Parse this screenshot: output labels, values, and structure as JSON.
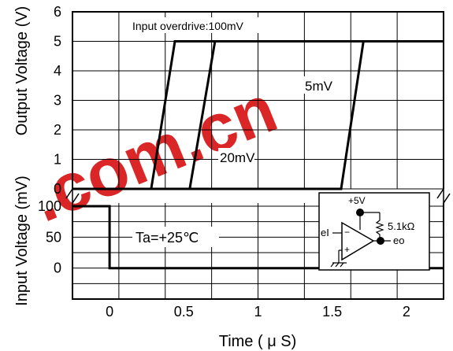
{
  "chart_data": {
    "type": "line",
    "x_unit_label": "Time ( μ S)",
    "x_ticks": [
      0,
      0.5,
      1,
      1.5,
      2
    ],
    "x_tick_labels": [
      "0",
      "0.5",
      "1",
      "1.5",
      "2"
    ],
    "x_range": [
      -0.25,
      2.25
    ],
    "upper_panel": {
      "ylabel": "Output Voltage (V)",
      "ylim": [
        0,
        6
      ],
      "y_ticks": [
        0,
        1,
        2,
        3,
        4,
        5,
        6
      ],
      "y_tick_labels": [
        "0",
        "1",
        "2",
        "3",
        "4",
        "5",
        "6"
      ],
      "series": [
        {
          "name": "Input overdrive:100mV",
          "x": [
            -0.25,
            0.28,
            0.44,
            2.25
          ],
          "y": [
            0,
            0,
            5,
            5
          ]
        },
        {
          "name": "20mV",
          "x": [
            -0.25,
            0.54,
            0.71,
            2.25
          ],
          "y": [
            0,
            0,
            5,
            5
          ]
        },
        {
          "name": "5mV",
          "x": [
            -0.25,
            1.56,
            1.71,
            2.25
          ],
          "y": [
            0,
            0,
            5,
            5
          ]
        }
      ]
    },
    "lower_panel": {
      "ylabel": "Input Voltage (mV)",
      "ylim": [
        -50,
        100
      ],
      "y_ticks": [
        0,
        50,
        100
      ],
      "y_tick_labels": [
        "0",
        "50",
        "100"
      ],
      "series": [
        {
          "name": "",
          "x": [
            -0.25,
            0,
            0,
            2.25
          ],
          "y": [
            100,
            100,
            0,
            0
          ]
        }
      ]
    },
    "annotations": {
      "overdrive": "Input overdrive:100mV",
      "label_20mv": "20mV",
      "label_5mv": "5mV",
      "temperature": "Ta=+25℃"
    },
    "inset": {
      "supply": "+5V",
      "resistor": "5.1kΩ",
      "input": "eI",
      "output": "eo",
      "minus": "−",
      "plus": "+"
    },
    "grid": true
  },
  "watermark": ".com.cn",
  "colors": {
    "line": "#000000",
    "grid": "#000000",
    "watermark": "#d40000"
  }
}
